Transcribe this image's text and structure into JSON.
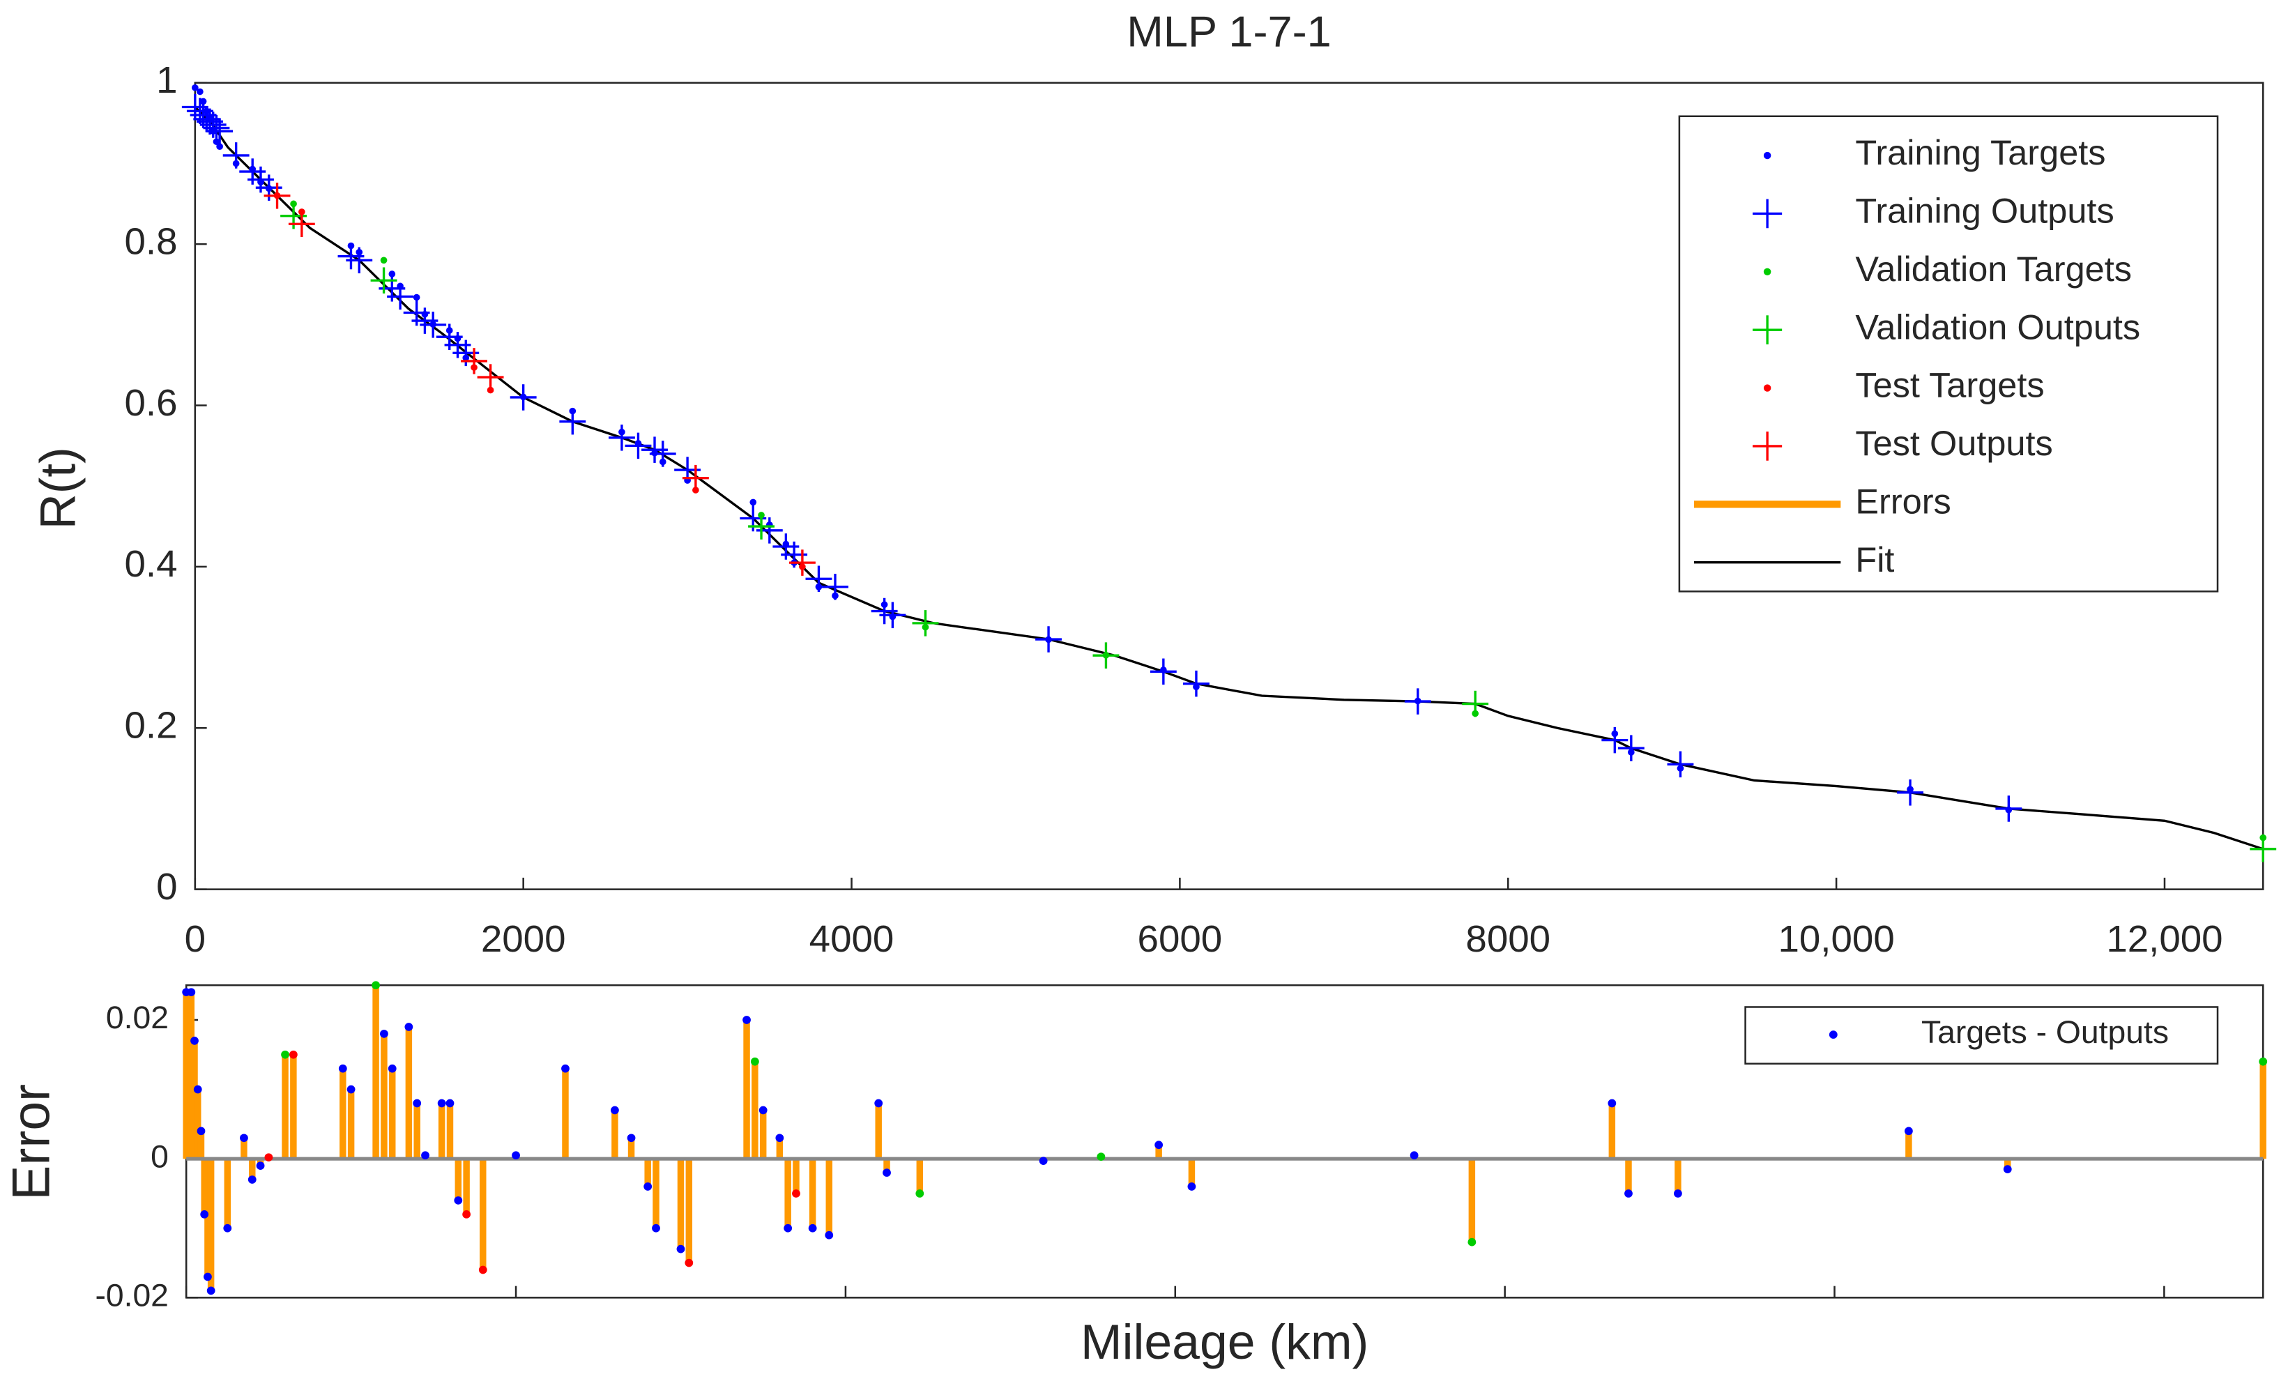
{
  "chart_data": [
    {
      "type": "line",
      "title": "MLP 1-7-1",
      "ylabel": "R(t)",
      "xlim": [
        0,
        12600
      ],
      "xticks": [
        0,
        2000,
        4000,
        6000,
        8000,
        {
          "value": 10000,
          "label": "10,000"
        },
        {
          "value": 12000,
          "label": "12,000"
        }
      ],
      "ylim": [
        0,
        1
      ],
      "yticks": [
        0,
        0.2,
        0.4,
        0.6,
        0.8,
        1
      ],
      "legend": "upper right",
      "series": [
        {
          "name": "Training Targets",
          "color": "#0000ff",
          "marker": "dot",
          "x": [
            0,
            30,
            50,
            70,
            90,
            110,
            130,
            150,
            250,
            350,
            400,
            450,
            950,
            1000,
            1200,
            1250,
            1350,
            1400,
            1450,
            1550,
            1600,
            1650,
            2000,
            2300,
            2600,
            2700,
            2800,
            2850,
            3000,
            3400,
            3500,
            3600,
            3650,
            3800,
            3900,
            4200,
            4250,
            5200,
            5900,
            6100,
            7450,
            8650,
            8750,
            9050,
            10450,
            11050
          ],
          "values": [
            0.994,
            0.989,
            0.977,
            0.965,
            0.956,
            0.94,
            0.927,
            0.921,
            0.9,
            0.893,
            0.877,
            0.869,
            0.798,
            0.79,
            0.763,
            0.748,
            0.734,
            0.713,
            0.7005,
            0.693,
            0.683,
            0.659,
            0.6105,
            0.593,
            0.567,
            0.553,
            0.541,
            0.53,
            0.507,
            0.48,
            0.452,
            0.428,
            0.405,
            0.375,
            0.364,
            0.353,
            0.338,
            0.3097,
            0.272,
            0.251,
            0.2335,
            0.193,
            0.17,
            0.15,
            0.124,
            0.0985
          ]
        },
        {
          "name": "Training Outputs",
          "color": "#0000ff",
          "marker": "plus",
          "x": [
            0,
            30,
            50,
            70,
            90,
            110,
            130,
            150,
            250,
            350,
            400,
            450,
            950,
            1000,
            1200,
            1250,
            1350,
            1400,
            1450,
            1550,
            1600,
            1650,
            2000,
            2300,
            2600,
            2700,
            2800,
            2850,
            3000,
            3400,
            3500,
            3600,
            3650,
            3800,
            3900,
            4200,
            4250,
            5200,
            5900,
            6100,
            7450,
            8650,
            8750,
            9050,
            10450,
            11050
          ],
          "values": [
            0.97,
            0.965,
            0.96,
            0.955,
            0.952,
            0.948,
            0.944,
            0.94,
            0.91,
            0.89,
            0.88,
            0.87,
            0.785,
            0.78,
            0.745,
            0.735,
            0.715,
            0.705,
            0.7,
            0.685,
            0.675,
            0.665,
            0.61,
            0.58,
            0.56,
            0.55,
            0.545,
            0.54,
            0.52,
            0.46,
            0.445,
            0.425,
            0.415,
            0.385,
            0.375,
            0.345,
            0.34,
            0.31,
            0.27,
            0.255,
            0.233,
            0.185,
            0.175,
            0.155,
            0.12,
            0.1
          ]
        },
        {
          "name": "Validation Targets",
          "color": "#00cc00",
          "marker": "dot",
          "x": [
            600,
            1150,
            3450,
            4450,
            5550,
            7800,
            12600
          ],
          "values": [
            0.85,
            0.78,
            0.464,
            0.325,
            0.2903,
            0.218,
            0.064
          ]
        },
        {
          "name": "Validation Outputs",
          "color": "#00cc00",
          "marker": "plus",
          "x": [
            600,
            1150,
            3450,
            4450,
            5550,
            7800,
            12600
          ],
          "values": [
            0.835,
            0.755,
            0.45,
            0.33,
            0.29,
            0.23,
            0.05
          ]
        },
        {
          "name": "Test Targets",
          "color": "#ff0000",
          "marker": "dot",
          "x": [
            500,
            650,
            1700,
            1800,
            3050,
            3700
          ],
          "values": [
            0.8602,
            0.84,
            0.647,
            0.619,
            0.495,
            0.4
          ]
        },
        {
          "name": "Test Outputs",
          "color": "#ff0000",
          "marker": "plus",
          "x": [
            500,
            650,
            1700,
            1800,
            3050,
            3700
          ],
          "values": [
            0.86,
            0.825,
            0.655,
            0.635,
            0.51,
            0.405
          ]
        },
        {
          "name": "Errors",
          "color": "#ff9900",
          "marker": "line",
          "line_width": 5
        },
        {
          "name": "Fit",
          "color": "#000000",
          "marker": "line",
          "line_width": 1.6,
          "x": [
            0,
            100,
            200,
            400,
            700,
            1000,
            1300,
            1500,
            2000,
            2300,
            2600,
            2800,
            3000,
            3400,
            3600,
            3800,
            4200,
            4500,
            5200,
            5600,
            5900,
            6100,
            6500,
            7000,
            7450,
            7800,
            8000,
            8300,
            8650,
            8750,
            9050,
            9500,
            10000,
            10450,
            11050,
            11500,
            12000,
            12300,
            12600
          ],
          "values": [
            0.97,
            0.95,
            0.92,
            0.88,
            0.82,
            0.78,
            0.72,
            0.69,
            0.61,
            0.58,
            0.56,
            0.545,
            0.52,
            0.46,
            0.42,
            0.38,
            0.345,
            0.33,
            0.31,
            0.29,
            0.27,
            0.255,
            0.24,
            0.235,
            0.233,
            0.23,
            0.215,
            0.2,
            0.185,
            0.175,
            0.155,
            0.135,
            0.128,
            0.12,
            0.1,
            0.093,
            0.085,
            0.07,
            0.05
          ]
        }
      ]
    },
    {
      "type": "stem",
      "ylabel": "Error",
      "xlabel": "Mileage (km)",
      "xlim": [
        0,
        12600
      ],
      "ylim": [
        -0.02,
        0.025
      ],
      "yticks": [
        -0.02,
        0,
        0.02
      ],
      "legend": "upper right",
      "stem_color": "#ff9900",
      "series": [
        {
          "name": "Targets - Outputs",
          "color": "#0000ff",
          "x": [
            0,
            30,
            50,
            70,
            90,
            110,
            130,
            150,
            250,
            350,
            400,
            450,
            950,
            1000,
            1200,
            1250,
            1350,
            1400,
            1450,
            1550,
            1600,
            1650,
            2000,
            2300,
            2600,
            2700,
            2800,
            2850,
            3000,
            3400,
            3500,
            3600,
            3650,
            3800,
            3900,
            4200,
            4250,
            5200,
            5900,
            6100,
            7450,
            8650,
            8750,
            9050,
            10450,
            11050
          ],
          "values": [
            0.024,
            0.024,
            0.017,
            0.01,
            0.004,
            -0.008,
            -0.017,
            -0.019,
            -0.01,
            0.003,
            -0.003,
            -0.001,
            0.013,
            0.01,
            0.018,
            0.013,
            0.019,
            0.008,
            0.0005,
            0.008,
            0.008,
            -0.006,
            0.0005,
            0.013,
            0.007,
            0.003,
            -0.004,
            -0.01,
            -0.013,
            0.02,
            0.007,
            0.003,
            -0.01,
            -0.01,
            -0.011,
            0.008,
            -0.002,
            -0.0003,
            0.002,
            -0.004,
            0.0005,
            0.008,
            -0.005,
            -0.005,
            0.004,
            -0.0015
          ]
        },
        {
          "color": "#00cc00",
          "x": [
            600,
            1150,
            3450,
            4450,
            5550,
            7800,
            12600
          ],
          "values": [
            0.015,
            0.025,
            0.014,
            -0.005,
            0.0003,
            -0.012,
            0.014
          ]
        },
        {
          "color": "#ff0000",
          "x": [
            500,
            650,
            1700,
            1800,
            3050,
            3700
          ],
          "values": [
            0.0002,
            0.015,
            -0.008,
            -0.016,
            -0.015,
            -0.005
          ]
        }
      ]
    }
  ]
}
